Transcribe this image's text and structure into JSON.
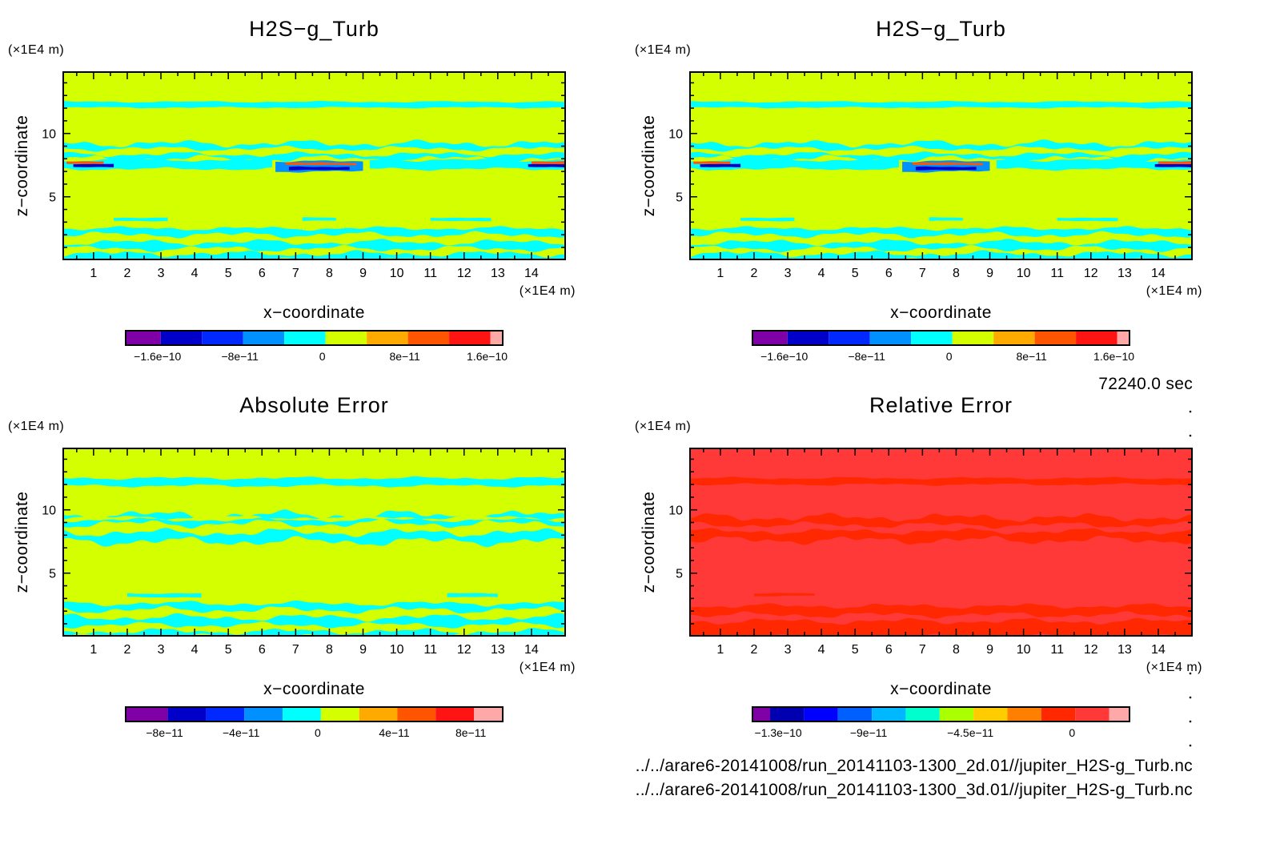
{
  "time_label": "72240.0 sec",
  "files": [
    "../../arare6-20141008/run_20141103-1300_2d.01//jupiter_H2S-g_Turb.nc",
    "../../arare6-20141008/run_20141103-1300_3d.01//jupiter_H2S-g_Turb.nc"
  ],
  "chart_data": [
    {
      "type": "heatmap",
      "title": "H2S−g_Turb",
      "xlabel": "x−coordinate",
      "ylabel": "z−coordinate",
      "x_unit": "(×1E4 m)",
      "y_unit": "(×1E4 m)",
      "xlim": [
        0.1,
        15
      ],
      "ylim": [
        0.05,
        14.85
      ],
      "x_ticks": [
        "1",
        "2",
        "3",
        "4",
        "5",
        "6",
        "7",
        "8",
        "9",
        "10",
        "11",
        "12",
        "13",
        "14"
      ],
      "y_ticks": [
        "5",
        "10"
      ],
      "base_color": "#D4FF00",
      "colorbar": {
        "colors": [
          "#8000A8",
          "#0000C8",
          "#0028FF",
          "#0090FF",
          "#00FFFF",
          "#D4FF00",
          "#FFAA00",
          "#FF5500",
          "#FF1414",
          "#FFA8A8"
        ],
        "levels": [
          -1.6e-10,
          -1.2e-10,
          -8e-11,
          -4e-11,
          0,
          4e-11,
          8e-11,
          1.2e-10,
          1.6e-10
        ],
        "range": [
          -1.94e-10,
          1.72e-10
        ],
        "labels": [
          {
            "v": -1.6e-10,
            "t": "−1.6e−10"
          },
          {
            "v": -8e-11,
            "t": "−8e−11"
          },
          {
            "v": 0,
            "t": "0"
          },
          {
            "v": 8e-11,
            "t": "8e−11"
          },
          {
            "v": 1.6e-10,
            "t": "1.6e−10"
          }
        ]
      },
      "features": "h2s"
    },
    {
      "type": "heatmap",
      "title": "H2S−g_Turb",
      "xlabel": "x−coordinate",
      "ylabel": "z−coordinate",
      "x_unit": "(×1E4 m)",
      "y_unit": "(×1E4 m)",
      "xlim": [
        0.1,
        15
      ],
      "ylim": [
        0.05,
        14.85
      ],
      "x_ticks": [
        "1",
        "2",
        "3",
        "4",
        "5",
        "6",
        "7",
        "8",
        "9",
        "10",
        "11",
        "12",
        "13",
        "14"
      ],
      "y_ticks": [
        "5",
        "10"
      ],
      "base_color": "#D4FF00",
      "colorbar": {
        "colors": [
          "#8000A8",
          "#0000C8",
          "#0028FF",
          "#0090FF",
          "#00FFFF",
          "#D4FF00",
          "#FFAA00",
          "#FF5500",
          "#FF1414",
          "#FFA8A8"
        ],
        "levels": [
          -1.6e-10,
          -1.2e-10,
          -8e-11,
          -4e-11,
          0,
          4e-11,
          8e-11,
          1.2e-10,
          1.6e-10
        ],
        "range": [
          -1.94e-10,
          1.72e-10
        ],
        "labels": [
          {
            "v": -1.6e-10,
            "t": "−1.6e−10"
          },
          {
            "v": -8e-11,
            "t": "−8e−11"
          },
          {
            "v": 0,
            "t": "0"
          },
          {
            "v": 8e-11,
            "t": "8e−11"
          },
          {
            "v": 1.6e-10,
            "t": "1.6e−10"
          }
        ]
      },
      "features": "h2s"
    },
    {
      "type": "heatmap",
      "title": "Absolute Error",
      "xlabel": "x−coordinate",
      "ylabel": "z−coordinate",
      "x_unit": "(×1E4 m)",
      "y_unit": "(×1E4 m)",
      "xlim": [
        0.1,
        15
      ],
      "ylim": [
        0.05,
        14.85
      ],
      "x_ticks": [
        "1",
        "2",
        "3",
        "4",
        "5",
        "6",
        "7",
        "8",
        "9",
        "10",
        "11",
        "12",
        "13",
        "14"
      ],
      "y_ticks": [
        "5",
        "10"
      ],
      "base_color": "#D4FF00",
      "colorbar": {
        "colors": [
          "#8000A8",
          "#0000C8",
          "#0028FF",
          "#0090FF",
          "#00FFFF",
          "#D4FF00",
          "#FFAA00",
          "#FF5500",
          "#FF1414",
          "#FFA8A8"
        ],
        "levels": [
          -8e-11,
          -6e-11,
          -4e-11,
          -2e-11,
          0,
          2e-11,
          4e-11,
          6e-11,
          8e-11
        ],
        "range": [
          -1.02e-10,
          9.5e-11
        ],
        "labels": [
          {
            "v": -8e-11,
            "t": "−8e−11"
          },
          {
            "v": -4e-11,
            "t": "−4e−11"
          },
          {
            "v": 0,
            "t": "0"
          },
          {
            "v": 4e-11,
            "t": "4e−11"
          },
          {
            "v": 8e-11,
            "t": "8e−11"
          }
        ]
      },
      "features": "abs"
    },
    {
      "type": "heatmap",
      "title": "Relative Error",
      "xlabel": "x−coordinate",
      "ylabel": "z−coordinate",
      "x_unit": "(×1E4 m)",
      "y_unit": "(×1E4 m)",
      "xlim": [
        0.1,
        15
      ],
      "ylim": [
        0.05,
        14.85
      ],
      "x_ticks": [
        "1",
        "2",
        "3",
        "4",
        "5",
        "6",
        "7",
        "8",
        "9",
        "10",
        "11",
        "12",
        "13",
        "14"
      ],
      "y_ticks": [
        "5",
        "10"
      ],
      "base_color": "#FF3838",
      "colorbar": {
        "colors": [
          "#8000A8",
          "#0000B0",
          "#0000FF",
          "#0060FF",
          "#00B8FF",
          "#00FFCC",
          "#AAFF00",
          "#FFCC00",
          "#FF8000",
          "#FF2800",
          "#FF3838",
          "#FFA8A8"
        ],
        "levels": [
          -1.35e-10,
          -1.2e-10,
          -1.05e-10,
          -9e-11,
          -7.5e-11,
          -6e-11,
          -4.5e-11,
          -3e-11,
          -1.5e-11,
          0,
          1.5e-11
        ],
        "range": [
          -1.428e-10,
          2.4e-11
        ],
        "labels": [
          {
            "v": -1.3e-10,
            "t": "−1.3e−10"
          },
          {
            "v": -9e-11,
            "t": "−9e−11"
          },
          {
            "v": -4.5e-11,
            "t": "−4.5e−11"
          },
          {
            "v": 0,
            "t": "0"
          }
        ]
      },
      "features": "rel"
    }
  ]
}
